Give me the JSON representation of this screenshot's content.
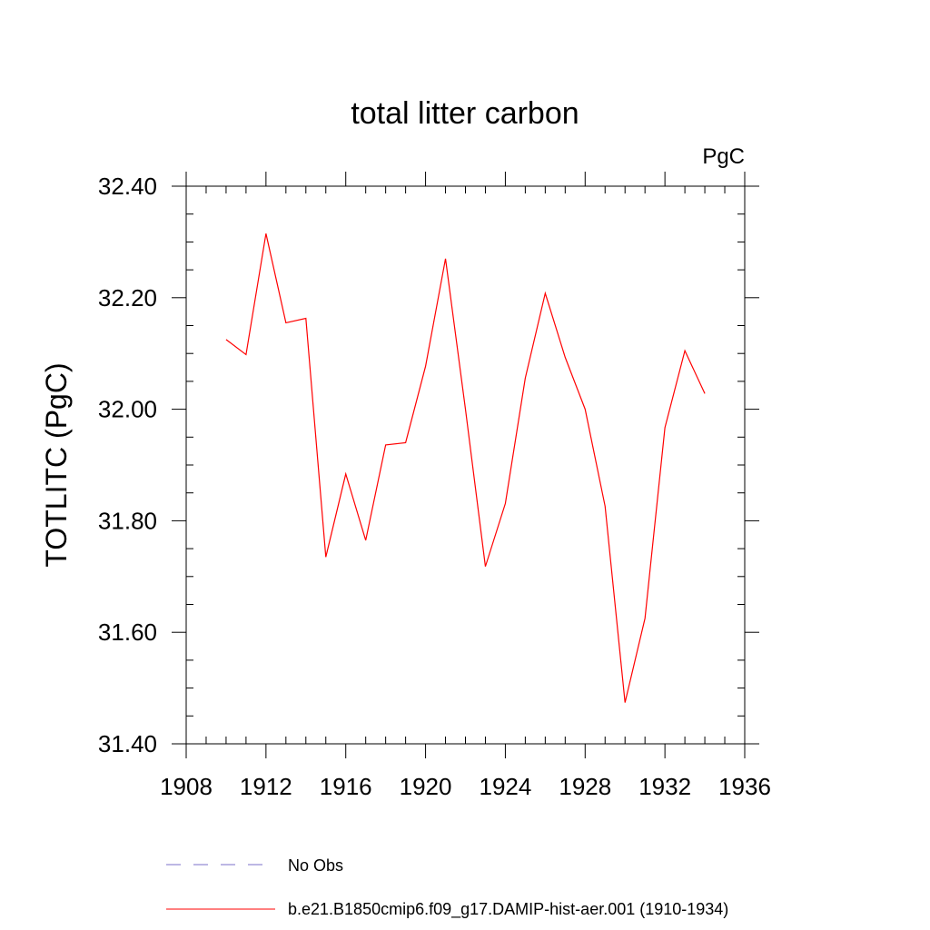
{
  "chart_data": {
    "type": "line",
    "title": "total litter carbon",
    "units": "PgC",
    "xlabel": "",
    "ylabel": "TOTLITC  (PgC)",
    "xlim": [
      1908,
      1936
    ],
    "ylim": [
      31.4,
      32.4
    ],
    "x_ticks": [
      1908,
      1912,
      1916,
      1920,
      1924,
      1928,
      1932,
      1936
    ],
    "y_ticks": [
      31.4,
      31.6,
      31.8,
      32.0,
      32.2,
      32.4
    ],
    "x_tick_labels": [
      "1908",
      "1912",
      "1916",
      "1920",
      "1924",
      "1928",
      "1932",
      "1936"
    ],
    "y_tick_labels": [
      "31.40",
      "31.60",
      "31.80",
      "32.00",
      "32.20",
      "32.40"
    ],
    "grid": false,
    "legend_position": "bottom",
    "series": [
      {
        "name": "b.e21.B1850cmip6.f09_g17.DAMIP-hist-aer.001 (1910-1934)",
        "color": "#ff0000",
        "style": "solid",
        "x": [
          1910,
          1911,
          1912,
          1913,
          1914,
          1915,
          1916,
          1917,
          1918,
          1919,
          1920,
          1921,
          1922,
          1923,
          1924,
          1925,
          1926,
          1927,
          1928,
          1929,
          1930,
          1931,
          1932,
          1933,
          1934
        ],
        "y": [
          32.125,
          32.098,
          32.315,
          32.155,
          32.163,
          31.735,
          31.884,
          31.765,
          31.936,
          31.94,
          32.077,
          32.27,
          32.0,
          31.718,
          31.831,
          32.056,
          32.208,
          32.093,
          32.0,
          31.826,
          31.474,
          31.625,
          31.967,
          32.105,
          32.028
        ]
      }
    ],
    "legend": [
      {
        "label": "No Obs",
        "color": "#7b6fc8",
        "style": "dashed"
      },
      {
        "label": "b.e21.B1850cmip6.f09_g17.DAMIP-hist-aer.001 (1910-1934)",
        "color": "#ff0000",
        "style": "solid"
      }
    ]
  }
}
